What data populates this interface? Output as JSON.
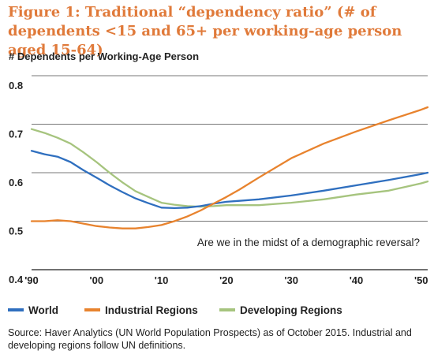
{
  "chart_data": {
    "type": "line",
    "title": "Figure 1: Traditional “dependency ratio” (# of dependents <15 and 65+ per working-age person aged 15-64)",
    "ylabel": "# Dependents per Working-Age Person",
    "xlabel": "",
    "ylim": [
      0.4,
      0.8
    ],
    "xlim": [
      1990,
      2051
    ],
    "y_ticks": [
      "0.4",
      "0.5",
      "0.6",
      "0.7",
      "0.8"
    ],
    "x_tick_values": [
      1990,
      2000,
      2010,
      2020,
      2030,
      2040,
      2050
    ],
    "x_ticks": [
      "'90",
      "'00",
      "'10",
      "'20",
      "'30",
      "'40",
      "'50"
    ],
    "grid": "horizontal",
    "legend_position": "bottom",
    "annotation": "Are we in the midst of a demographic reversal?",
    "series": [
      {
        "name": "World",
        "color": "#2f6fbf",
        "x": [
          1990,
          1992,
          1994,
          1996,
          1998,
          2000,
          2002,
          2004,
          2006,
          2008,
          2010,
          2012,
          2014,
          2016,
          2018,
          2020,
          2022,
          2025,
          2030,
          2035,
          2040,
          2045,
          2050,
          2051
        ],
        "y": [
          0.645,
          0.638,
          0.633,
          0.622,
          0.605,
          0.59,
          0.574,
          0.56,
          0.547,
          0.537,
          0.528,
          0.527,
          0.528,
          0.531,
          0.536,
          0.54,
          0.542,
          0.545,
          0.553,
          0.563,
          0.574,
          0.585,
          0.597,
          0.6
        ]
      },
      {
        "name": "Industrial Regions",
        "color": "#e8832e",
        "x": [
          1990,
          1992,
          1994,
          1996,
          1998,
          2000,
          2002,
          2004,
          2006,
          2008,
          2010,
          2012,
          2014,
          2016,
          2018,
          2020,
          2022,
          2025,
          2030,
          2035,
          2040,
          2045,
          2050,
          2051
        ],
        "y": [
          0.5,
          0.5,
          0.502,
          0.5,
          0.495,
          0.49,
          0.487,
          0.485,
          0.485,
          0.488,
          0.492,
          0.5,
          0.51,
          0.522,
          0.536,
          0.55,
          0.565,
          0.59,
          0.63,
          0.66,
          0.685,
          0.708,
          0.73,
          0.735
        ]
      },
      {
        "name": "Developing Regions",
        "color": "#a6c47e",
        "x": [
          1990,
          1992,
          1994,
          1996,
          1998,
          2000,
          2002,
          2004,
          2006,
          2008,
          2010,
          2012,
          2014,
          2016,
          2018,
          2020,
          2022,
          2025,
          2030,
          2035,
          2040,
          2045,
          2050,
          2051
        ],
        "y": [
          0.69,
          0.682,
          0.672,
          0.66,
          0.642,
          0.622,
          0.6,
          0.58,
          0.562,
          0.55,
          0.538,
          0.534,
          0.531,
          0.53,
          0.531,
          0.533,
          0.533,
          0.533,
          0.538,
          0.545,
          0.555,
          0.563,
          0.578,
          0.582
        ]
      }
    ]
  },
  "source": "Source: Haver Analytics (UN World Population Prospects) as of October 2015. Industrial and developing regions follow UN definitions."
}
